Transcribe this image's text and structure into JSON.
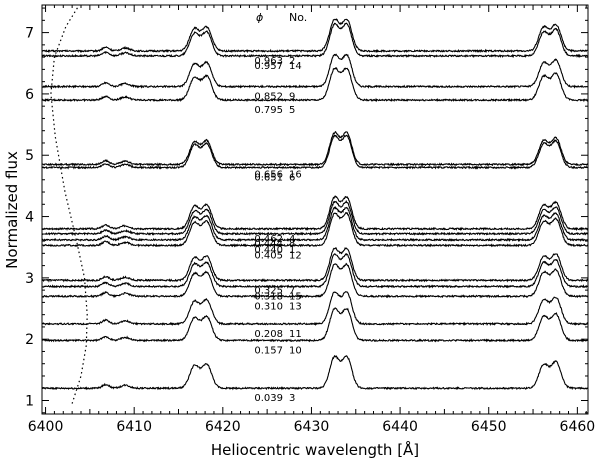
{
  "chart_data": {
    "type": "line",
    "xlabel": "Heliocentric wavelength [Å]",
    "ylabel": "Normalized flux",
    "xlim": [
      6399.6,
      6461.2
    ],
    "ylim": [
      0.78,
      7.45
    ],
    "x_ticks": [
      6400,
      6410,
      6420,
      6430,
      6440,
      6450,
      6460
    ],
    "y_ticks": [
      1,
      2,
      3,
      4,
      5,
      6,
      7
    ],
    "column_headers": {
      "phase": "ϕ",
      "number": "No."
    },
    "spectra": [
      {
        "phase": "0.963",
        "no": "2",
        "baseline": 6.7
      },
      {
        "phase": "0.957",
        "no": "14",
        "baseline": 6.62
      },
      {
        "phase": "0.852",
        "no": "9",
        "baseline": 6.12
      },
      {
        "phase": "0.795",
        "no": "5",
        "baseline": 5.9
      },
      {
        "phase": "0.656",
        "no": "16",
        "baseline": 4.85
      },
      {
        "phase": "0.651",
        "no": "6",
        "baseline": 4.8
      },
      {
        "phase": "0.462",
        "no": "4",
        "baseline": 3.8
      },
      {
        "phase": "0.444",
        "no": "8",
        "baseline": 3.72
      },
      {
        "phase": "0.440",
        "no": "1",
        "baseline": 3.62
      },
      {
        "phase": "0.405",
        "no": "12",
        "baseline": 3.53
      },
      {
        "phase": "0.325",
        "no": "7",
        "baseline": 2.96
      },
      {
        "phase": "0.318",
        "no": "15",
        "baseline": 2.86
      },
      {
        "phase": "0.310",
        "no": "13",
        "baseline": 2.7
      },
      {
        "phase": "0.208",
        "no": "11",
        "baseline": 2.25
      },
      {
        "phase": "0.157",
        "no": "10",
        "baseline": 1.98
      },
      {
        "phase": "0.039",
        "no": "3",
        "baseline": 1.2
      }
    ],
    "emission_features": [
      {
        "center": 6416.8,
        "height": 0.36
      },
      {
        "center": 6418.2,
        "height": 0.38
      },
      {
        "center": 6432.6,
        "height": 0.5
      },
      {
        "center": 6434.0,
        "height": 0.5
      },
      {
        "center": 6456.2,
        "height": 0.38
      },
      {
        "center": 6457.6,
        "height": 0.42
      }
    ],
    "dotted_curve": [
      [
        6403.0,
        0.95
      ],
      [
        6404.0,
        1.4
      ],
      [
        6404.6,
        1.9
      ],
      [
        6404.7,
        2.4
      ],
      [
        6404.4,
        3.0
      ],
      [
        6403.5,
        3.6
      ],
      [
        6402.2,
        4.4
      ],
      [
        6401.1,
        5.3
      ],
      [
        6400.6,
        6.0
      ],
      [
        6401.0,
        6.6
      ],
      [
        6402.3,
        7.1
      ],
      [
        6403.8,
        7.45
      ]
    ],
    "grid": false,
    "legend": "none"
  }
}
